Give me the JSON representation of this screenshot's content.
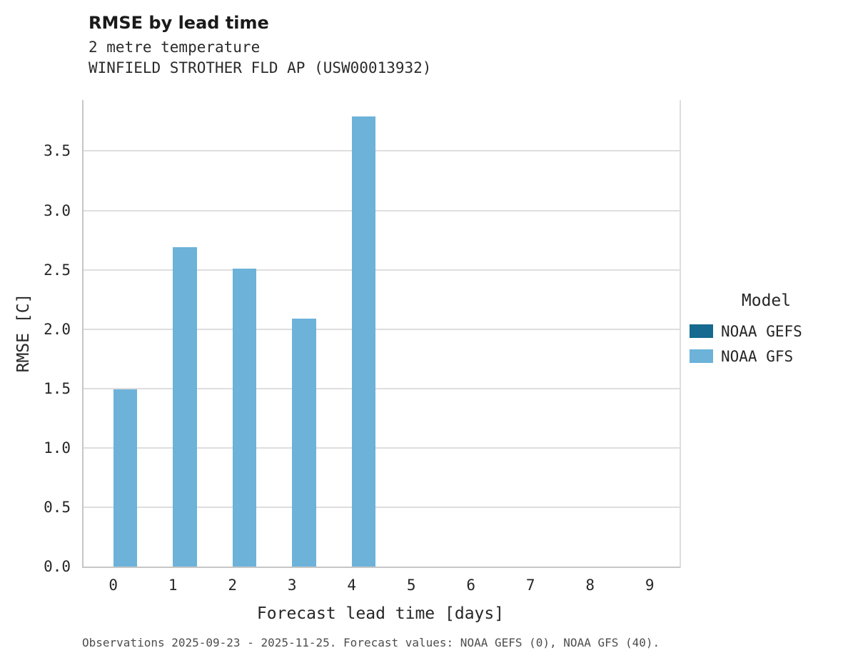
{
  "chart_data": {
    "type": "bar",
    "title": "RMSE by lead time",
    "subtitle1": "2 metre temperature",
    "subtitle2": "WINFIELD STROTHER FLD AP (USW00013932)",
    "xlabel": "Forecast lead time [days]",
    "ylabel": "RMSE [C]",
    "categories": [
      0,
      1,
      2,
      3,
      4,
      5,
      6,
      7,
      8,
      9
    ],
    "series": [
      {
        "name": "NOAA GEFS",
        "color": "#16698f",
        "values": []
      },
      {
        "name": "NOAA GFS",
        "color": "#6cb2d9",
        "values": [
          1.49,
          2.69,
          2.51,
          2.09,
          3.79
        ]
      }
    ],
    "ylim": [
      0,
      3.93
    ],
    "yticks": [
      0.0,
      0.5,
      1.0,
      1.5,
      2.0,
      2.5,
      3.0,
      3.5
    ],
    "grid": "horizontal",
    "legend_title": "Model",
    "legend_position": "right",
    "caption": "Observations 2025-09-23 - 2025-11-25. Forecast values: NOAA GEFS (0), NOAA GFS (40)."
  }
}
